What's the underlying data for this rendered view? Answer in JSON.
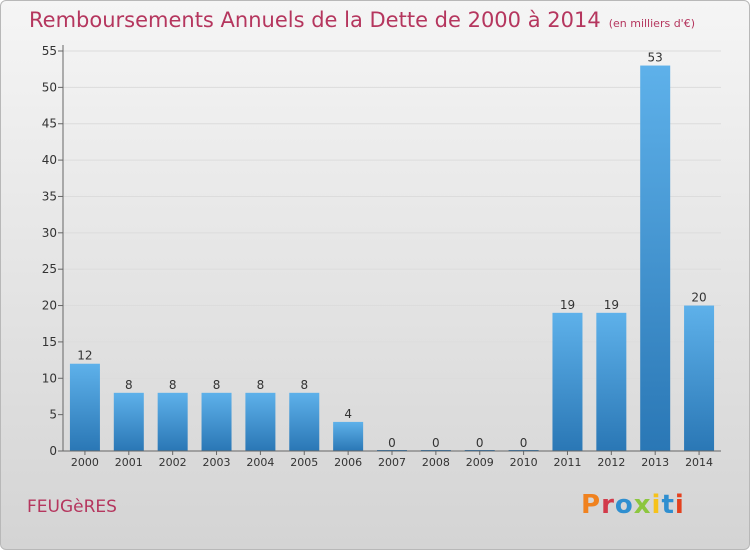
{
  "header": {
    "title": "Remboursements Annuels de la Dette de 2000 à 2014",
    "unit": "(en milliers d'€)"
  },
  "footer": {
    "commune": "FEUGèRES",
    "brand": "Proxiti",
    "brand_colors": [
      "#f0821f",
      "#d23a4a",
      "#2f8fd0",
      "#8cc63f",
      "#f6c21a",
      "#2f8fd0",
      "#e4411e"
    ]
  },
  "colors": {
    "title": "#b5365e",
    "bar_top": "#5eb1ea",
    "bar_bottom": "#2a77b5",
    "axis": "#666666",
    "grid": "#dcdcdc"
  },
  "chart_data": {
    "type": "bar",
    "categories": [
      "2000",
      "2001",
      "2002",
      "2003",
      "2004",
      "2005",
      "2006",
      "2007",
      "2008",
      "2009",
      "2010",
      "2011",
      "2012",
      "2013",
      "2014"
    ],
    "values": [
      12,
      8,
      8,
      8,
      8,
      8,
      4,
      0,
      0,
      0,
      0,
      19,
      19,
      53,
      20
    ],
    "ylim": [
      0,
      55
    ],
    "yticks": [
      0,
      5,
      10,
      15,
      20,
      25,
      30,
      35,
      40,
      45,
      50,
      55
    ],
    "grid": true,
    "legend": "none"
  }
}
